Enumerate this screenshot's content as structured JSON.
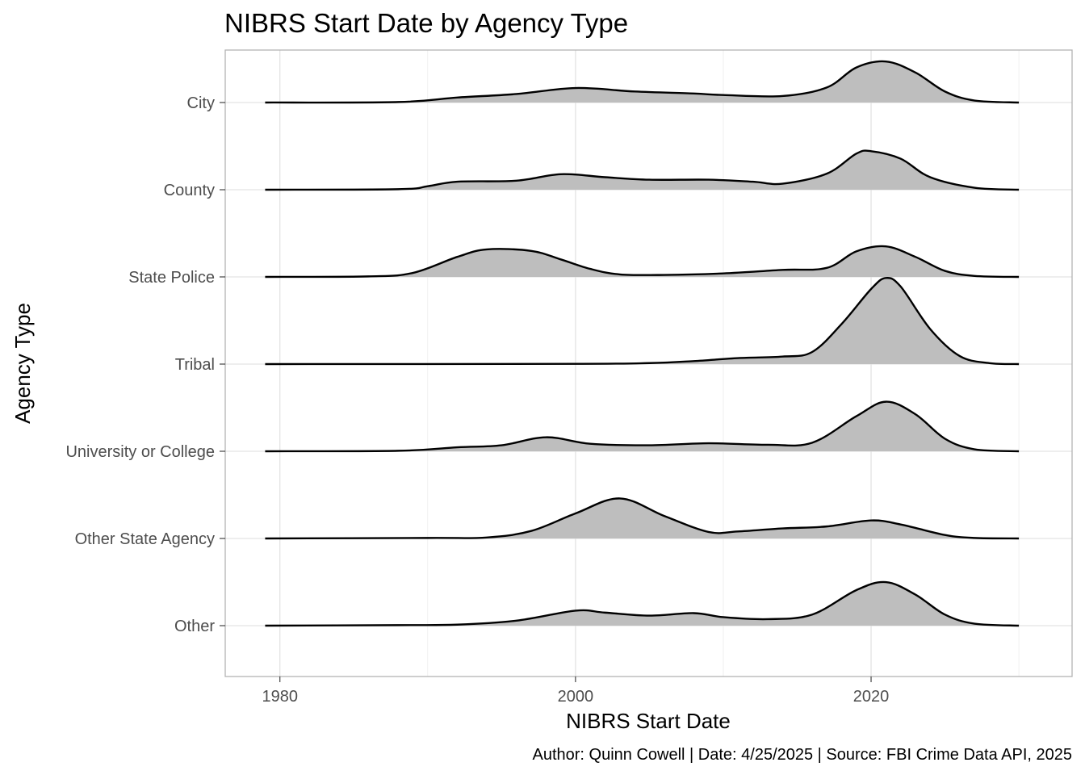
{
  "chart_data": {
    "type": "ridgeline",
    "title": "NIBRS Start Date by Agency Type",
    "xlabel": "NIBRS Start Date",
    "ylabel": "Agency Type",
    "caption": "Author: Quinn Cowell | Date: 4/25/2025 | Source: FBI Crime Data API, 2025",
    "xlim": [
      1976.3,
      2033.6
    ],
    "x_range": [
      1979,
      2030
    ],
    "x_ticks": [
      1980,
      2000,
      2020
    ],
    "x_minor_ticks": [
      1990,
      2010,
      2030
    ],
    "grid": true,
    "fill_color": "#bebebe",
    "line_color": "#000000",
    "series": [
      {
        "name": "City",
        "points": [
          [
            1979,
            0
          ],
          [
            1988,
            0.01
          ],
          [
            1992,
            0.1
          ],
          [
            1996,
            0.17
          ],
          [
            2000,
            0.29
          ],
          [
            2004,
            0.22
          ],
          [
            2008,
            0.18
          ],
          [
            2010,
            0.15
          ],
          [
            2014,
            0.13
          ],
          [
            2017,
            0.3
          ],
          [
            2019,
            0.7
          ],
          [
            2021,
            0.82
          ],
          [
            2023,
            0.6
          ],
          [
            2025,
            0.22
          ],
          [
            2027,
            0.04
          ],
          [
            2030,
            0
          ]
        ]
      },
      {
        "name": "County",
        "points": [
          [
            1979,
            0
          ],
          [
            1988,
            0.01
          ],
          [
            1990,
            0.07
          ],
          [
            1992,
            0.16
          ],
          [
            1996,
            0.18
          ],
          [
            1999,
            0.31
          ],
          [
            2002,
            0.25
          ],
          [
            2005,
            0.2
          ],
          [
            2009,
            0.2
          ],
          [
            2012,
            0.16
          ],
          [
            2014,
            0.12
          ],
          [
            2017,
            0.32
          ],
          [
            2019,
            0.72
          ],
          [
            2020,
            0.77
          ],
          [
            2022,
            0.62
          ],
          [
            2024,
            0.25
          ],
          [
            2027,
            0.04
          ],
          [
            2030,
            0
          ]
        ]
      },
      {
        "name": "State Police",
        "points": [
          [
            1979,
            0
          ],
          [
            1986,
            0.01
          ],
          [
            1989,
            0.08
          ],
          [
            1992,
            0.4
          ],
          [
            1994,
            0.55
          ],
          [
            1997,
            0.52
          ],
          [
            1999,
            0.35
          ],
          [
            2001,
            0.16
          ],
          [
            2003,
            0.05
          ],
          [
            2006,
            0.04
          ],
          [
            2010,
            0.07
          ],
          [
            2014,
            0.14
          ],
          [
            2017,
            0.18
          ],
          [
            2019,
            0.51
          ],
          [
            2021,
            0.61
          ],
          [
            2023,
            0.4
          ],
          [
            2025,
            0.12
          ],
          [
            2027,
            0.02
          ],
          [
            2030,
            0
          ]
        ]
      },
      {
        "name": "Tribal",
        "points": [
          [
            1979,
            0
          ],
          [
            2000,
            0.005
          ],
          [
            2005,
            0.02
          ],
          [
            2008,
            0.06
          ],
          [
            2011,
            0.12
          ],
          [
            2014,
            0.15
          ],
          [
            2016,
            0.24
          ],
          [
            2018,
            0.8
          ],
          [
            2020,
            1.5
          ],
          [
            2021,
            1.72
          ],
          [
            2022,
            1.55
          ],
          [
            2024,
            0.7
          ],
          [
            2026,
            0.16
          ],
          [
            2028,
            0.02
          ],
          [
            2030,
            0
          ]
        ]
      },
      {
        "name": "University or College",
        "points": [
          [
            1979,
            0
          ],
          [
            1988,
            0.01
          ],
          [
            1992,
            0.08
          ],
          [
            1995,
            0.12
          ],
          [
            1998,
            0.28
          ],
          [
            2001,
            0.15
          ],
          [
            2005,
            0.12
          ],
          [
            2009,
            0.16
          ],
          [
            2013,
            0.13
          ],
          [
            2016,
            0.17
          ],
          [
            2019,
            0.7
          ],
          [
            2021,
            0.99
          ],
          [
            2023,
            0.74
          ],
          [
            2025,
            0.25
          ],
          [
            2027,
            0.04
          ],
          [
            2030,
            0
          ]
        ]
      },
      {
        "name": "Other State Agency",
        "points": [
          [
            1979,
            0
          ],
          [
            1990,
            0.01
          ],
          [
            1994,
            0.02
          ],
          [
            1997,
            0.15
          ],
          [
            2000,
            0.5
          ],
          [
            2003,
            0.8
          ],
          [
            2006,
            0.45
          ],
          [
            2009,
            0.13
          ],
          [
            2011,
            0.14
          ],
          [
            2014,
            0.2
          ],
          [
            2017,
            0.24
          ],
          [
            2020,
            0.36
          ],
          [
            2022,
            0.28
          ],
          [
            2025,
            0.07
          ],
          [
            2027,
            0.01
          ],
          [
            2030,
            0
          ]
        ]
      },
      {
        "name": "Other",
        "points": [
          [
            1979,
            0
          ],
          [
            1988,
            0.01
          ],
          [
            1992,
            0.02
          ],
          [
            1996,
            0.1
          ],
          [
            2000,
            0.3
          ],
          [
            2002,
            0.26
          ],
          [
            2005,
            0.2
          ],
          [
            2008,
            0.25
          ],
          [
            2010,
            0.17
          ],
          [
            2013,
            0.13
          ],
          [
            2016,
            0.22
          ],
          [
            2019,
            0.71
          ],
          [
            2021,
            0.87
          ],
          [
            2023,
            0.62
          ],
          [
            2025,
            0.22
          ],
          [
            2027,
            0.04
          ],
          [
            2030,
            0
          ]
        ]
      }
    ]
  }
}
